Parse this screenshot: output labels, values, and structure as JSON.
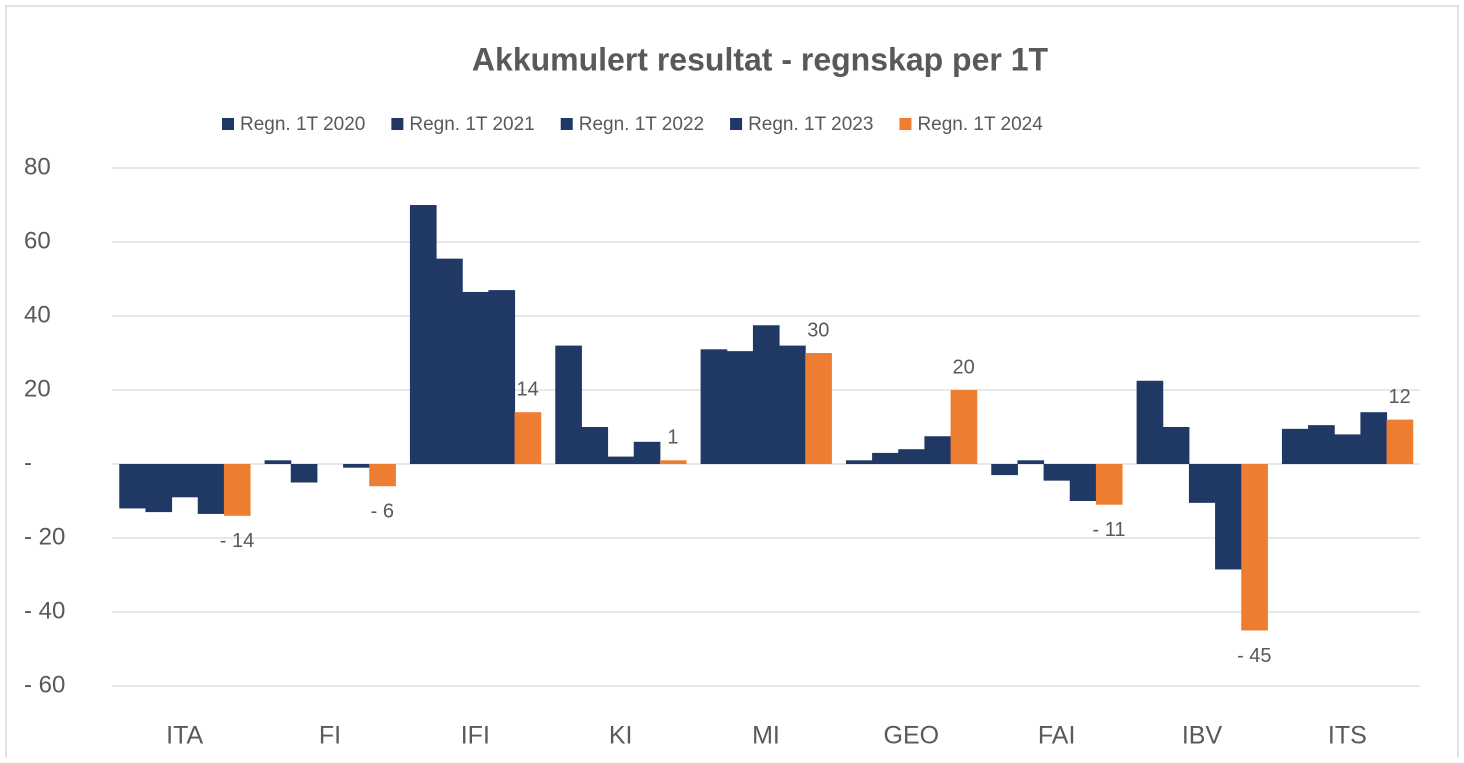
{
  "chart_data": {
    "type": "bar",
    "title": "Akkumulert resultat - regnskap per 1T",
    "categories": [
      "ITA",
      "FI",
      "IFI",
      "KI",
      "MI",
      "GEO",
      "FAI",
      "IBV",
      "ITS"
    ],
    "series": [
      {
        "name": "Regn. 1T 2020",
        "color": "#203864",
        "values": [
          -12,
          1,
          70,
          32,
          31,
          1,
          -3,
          22.5,
          9.5
        ]
      },
      {
        "name": "Regn. 1T 2021",
        "color": "#203864",
        "values": [
          -13,
          -5,
          55.5,
          10,
          30.5,
          3,
          1,
          10,
          10.5
        ]
      },
      {
        "name": "Regn. 1T 2022",
        "color": "#203864",
        "values": [
          -9,
          0,
          46.5,
          2,
          37.5,
          4,
          -4.5,
          -10.5,
          8
        ]
      },
      {
        "name": "Regn. 1T 2023",
        "color": "#203864",
        "values": [
          -13.5,
          -1,
          47,
          6,
          32,
          7.5,
          -10,
          -28.5,
          14
        ]
      },
      {
        "name": "Regn. 1T 2024",
        "color": "#ed7d31",
        "values": [
          -14,
          -6,
          14,
          1,
          30,
          20,
          -11,
          -45,
          12
        ],
        "value_labels": [
          "- 14",
          "- 6",
          "14",
          "1",
          "30",
          "20",
          "- 11",
          "- 45",
          "12"
        ]
      }
    ],
    "ylim": [
      -60,
      80
    ],
    "yticks": [
      {
        "value": -60,
        "label": "- 60"
      },
      {
        "value": -40,
        "label": "- 40"
      },
      {
        "value": -20,
        "label": "- 20"
      },
      {
        "value": 0,
        "label": "-"
      },
      20,
      40,
      60,
      80
    ],
    "grid": true,
    "legend": "top"
  }
}
